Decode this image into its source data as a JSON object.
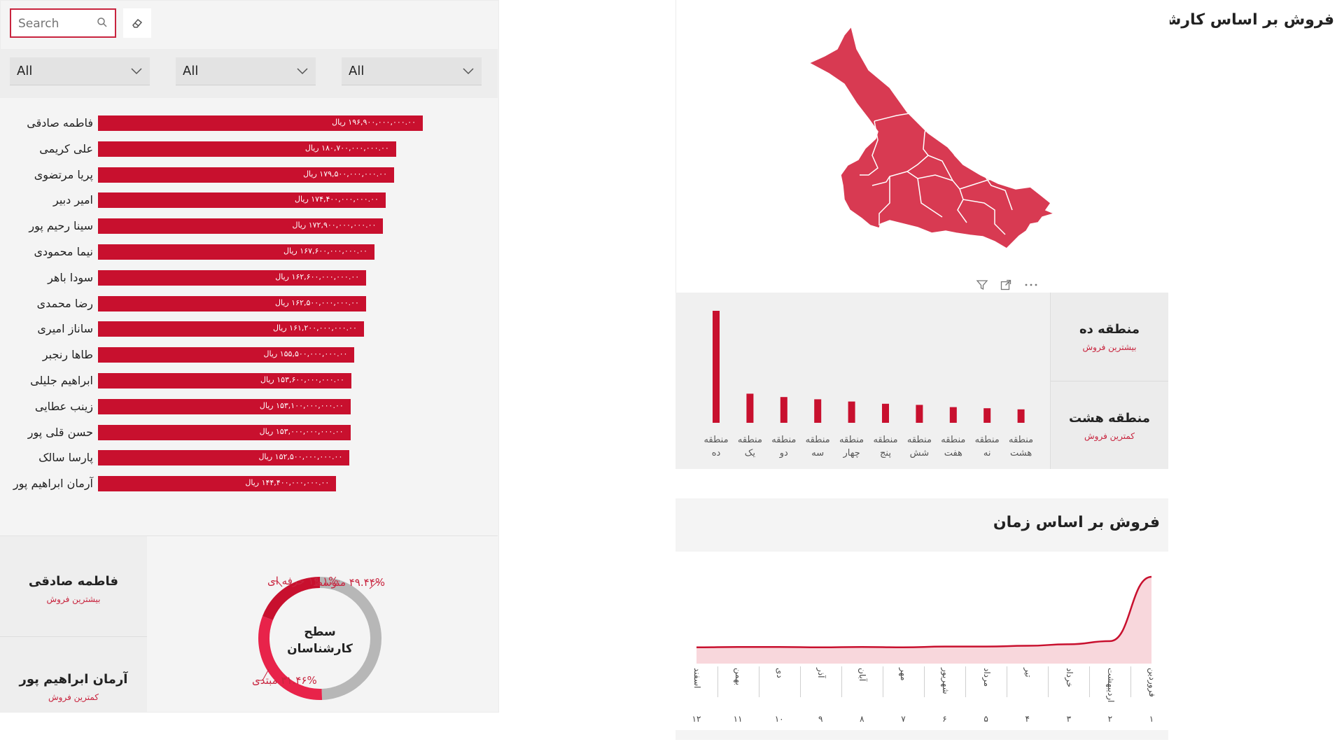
{
  "sales_by_expert": {
    "title": "فروش بر اساس کارشناس",
    "search_placeholder": "Search",
    "slicers": [
      "All",
      "All",
      "All"
    ],
    "bars": [
      {
        "name": "فاطمه صادقی",
        "label": "۱۹۶,۹۰۰,۰۰۰,۰۰۰.۰۰ ریال",
        "value": 196.9
      },
      {
        "name": "علی کریمی",
        "label": "۱۸۰,۷۰۰,۰۰۰,۰۰۰.۰۰ ریال",
        "value": 180.7
      },
      {
        "name": "پریا مرتضوی",
        "label": "۱۷۹,۵۰۰,۰۰۰,۰۰۰.۰۰ ریال",
        "value": 179.5
      },
      {
        "name": "امیر دبیر",
        "label": "۱۷۴,۴۰۰,۰۰۰,۰۰۰.۰۰ ریال",
        "value": 174.4
      },
      {
        "name": "سینا رحیم پور",
        "label": "۱۷۲,۹۰۰,۰۰۰,۰۰۰.۰۰ ریال",
        "value": 172.9
      },
      {
        "name": "نیما محمودی",
        "label": "۱۶۷,۶۰۰,۰۰۰,۰۰۰.۰۰ ریال",
        "value": 167.6
      },
      {
        "name": "سودا باهر",
        "label": "۱۶۲,۶۰۰,۰۰۰,۰۰۰.۰۰ ریال",
        "value": 162.6
      },
      {
        "name": "رضا محمدی",
        "label": "۱۶۲,۵۰۰,۰۰۰,۰۰۰.۰۰ ریال",
        "value": 162.5
      },
      {
        "name": "ساناز امیری",
        "label": "۱۶۱,۲۰۰,۰۰۰,۰۰۰.۰۰ ریال",
        "value": 161.2
      },
      {
        "name": "طاها رنجبر",
        "label": "۱۵۵,۵۰۰,۰۰۰,۰۰۰.۰۰ ریال",
        "value": 155.5
      },
      {
        "name": "ابراهیم جلیلی",
        "label": "۱۵۳,۶۰۰,۰۰۰,۰۰۰.۰۰ ریال",
        "value": 153.6
      },
      {
        "name": "زینب عطایی",
        "label": "۱۵۳,۱۰۰,۰۰۰,۰۰۰.۰۰ ریال",
        "value": 153.1
      },
      {
        "name": "حسن قلی پور",
        "label": "۱۵۳,۰۰۰,۰۰۰,۰۰۰.۰۰ ریال",
        "value": 153.0
      },
      {
        "name": "پارسا سالک",
        "label": "۱۵۲,۵۰۰,۰۰۰,۰۰۰.۰۰ ریال",
        "value": 152.5
      },
      {
        "name": "آرمان ابراهیم پور",
        "label": "۱۴۴,۴۰۰,۰۰۰,۰۰۰.۰۰ ریال",
        "value": 144.4
      }
    ],
    "bar_color": "#c8102e"
  },
  "expert_kpis": {
    "top": {
      "name": "فاطمه صادقی",
      "sub": "بیشترین فروش"
    },
    "bottom": {
      "name": "آرمان ابراهیم پور",
      "sub": "کمترین فروش"
    }
  },
  "expert_level": {
    "center_line1": "سطح",
    "center_line2": "کارشناسان",
    "slices": [
      {
        "label": "۴۹.۴۴% متوسط",
        "value": 49.44,
        "color": "#b7b7b7"
      },
      {
        "label": "۳۱.۴۶% مبتدی",
        "value": 31.46,
        "color": "#e8234a"
      },
      {
        "label": "۱۹.۱% حرفه ای",
        "value": 19.1,
        "color": "#c8102e"
      }
    ]
  },
  "region_kpis": {
    "top": {
      "name": "منطقه ده",
      "sub": "بیشترین فروش"
    },
    "bottom": {
      "name": "منطقه هشت",
      "sub": "کمترین فروش"
    }
  },
  "chart_data": [
    {
      "type": "bar",
      "categories": [
        "منطقه ده",
        "منطقه یک",
        "منطقه دو",
        "منطقه سه",
        "منطقه چهار",
        "منطقه پنج",
        "منطقه شش",
        "منطقه هفت",
        "منطقه نه",
        "منطقه هشت"
      ],
      "values": [
        100,
        26,
        23,
        21,
        19,
        17,
        16,
        14,
        13,
        12
      ],
      "title": "",
      "xlabel": "",
      "ylabel": ""
    },
    {
      "type": "area",
      "title": "فروش بر اساس زمان",
      "categories": [
        "اسفند",
        "بهمن",
        "دی",
        "آذر",
        "آبان",
        "مهر",
        "شهریور",
        "مرداد",
        "تیر",
        "خرداد",
        "اردیبهشت",
        "فروردین"
      ],
      "numbers": [
        "۱۲",
        "۱۱",
        "۱۰",
        "۹",
        "۸",
        "۷",
        "۶",
        "۵",
        "۴",
        "۳",
        "۲",
        "۱"
      ],
      "values": [
        10,
        10.5,
        10.5,
        10,
        10.5,
        10,
        11,
        11,
        12,
        14,
        18,
        100
      ],
      "line_color": "#c8102e",
      "fill_color": "#f8d7dc"
    }
  ]
}
